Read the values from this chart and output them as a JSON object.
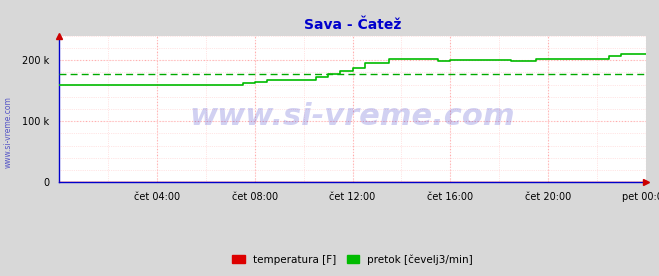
{
  "title": "Sava - Čatež",
  "title_color": "#0000cc",
  "title_fontsize": 10,
  "bg_color": "#d8d8d8",
  "plot_bg_color": "#ffffff",
  "axis_color": "#0000cc",
  "grid_color": "#ffaaaa",
  "ylim": [
    0,
    240000
  ],
  "yticks": [
    0,
    100000,
    200000
  ],
  "ytick_labels": [
    "0",
    "100 k",
    "200 k"
  ],
  "xtick_labels": [
    "čet 04:00",
    "čet 08:00",
    "čet 12:00",
    "čet 16:00",
    "čet 20:00",
    "pet 00:00"
  ],
  "xtick_positions": [
    4,
    8,
    12,
    16,
    20,
    24
  ],
  "xlim": [
    0,
    24
  ],
  "watermark": "www.si-vreme.com",
  "watermark_color": "#0000bb",
  "watermark_alpha": 0.18,
  "watermark_fontsize": 22,
  "side_label": "www.si-vreme.com",
  "legend_labels": [
    "temperatura [F]",
    "pretok [čevelj3/min]"
  ],
  "legend_colors": [
    "#dd0000",
    "#00bb00"
  ],
  "avg_line_value": 178000,
  "avg_line_color": "#00aa00",
  "temperatura_color": "#dd0000",
  "pretok_color": "#00bb00",
  "pretok_data_x": [
    0,
    7.5,
    7.5,
    8.0,
    8.0,
    8.5,
    8.5,
    10.5,
    10.5,
    11.0,
    11.0,
    11.5,
    11.5,
    12.0,
    12.0,
    12.5,
    12.5,
    13.5,
    13.5,
    15.5,
    15.5,
    16.0,
    16.0,
    18.5,
    18.5,
    19.5,
    19.5,
    22.5,
    22.5,
    23.0,
    23.0,
    24.0
  ],
  "pretok_data_y": [
    160000,
    160000,
    162000,
    162000,
    165000,
    165000,
    167000,
    167000,
    172000,
    172000,
    178000,
    178000,
    183000,
    183000,
    188000,
    188000,
    195000,
    195000,
    202000,
    202000,
    198000,
    198000,
    200000,
    200000,
    198000,
    198000,
    202000,
    202000,
    207000,
    207000,
    210000,
    210000
  ],
  "temperatura_data_x": [
    0,
    24
  ],
  "temperatura_data_y": [
    500,
    500
  ]
}
